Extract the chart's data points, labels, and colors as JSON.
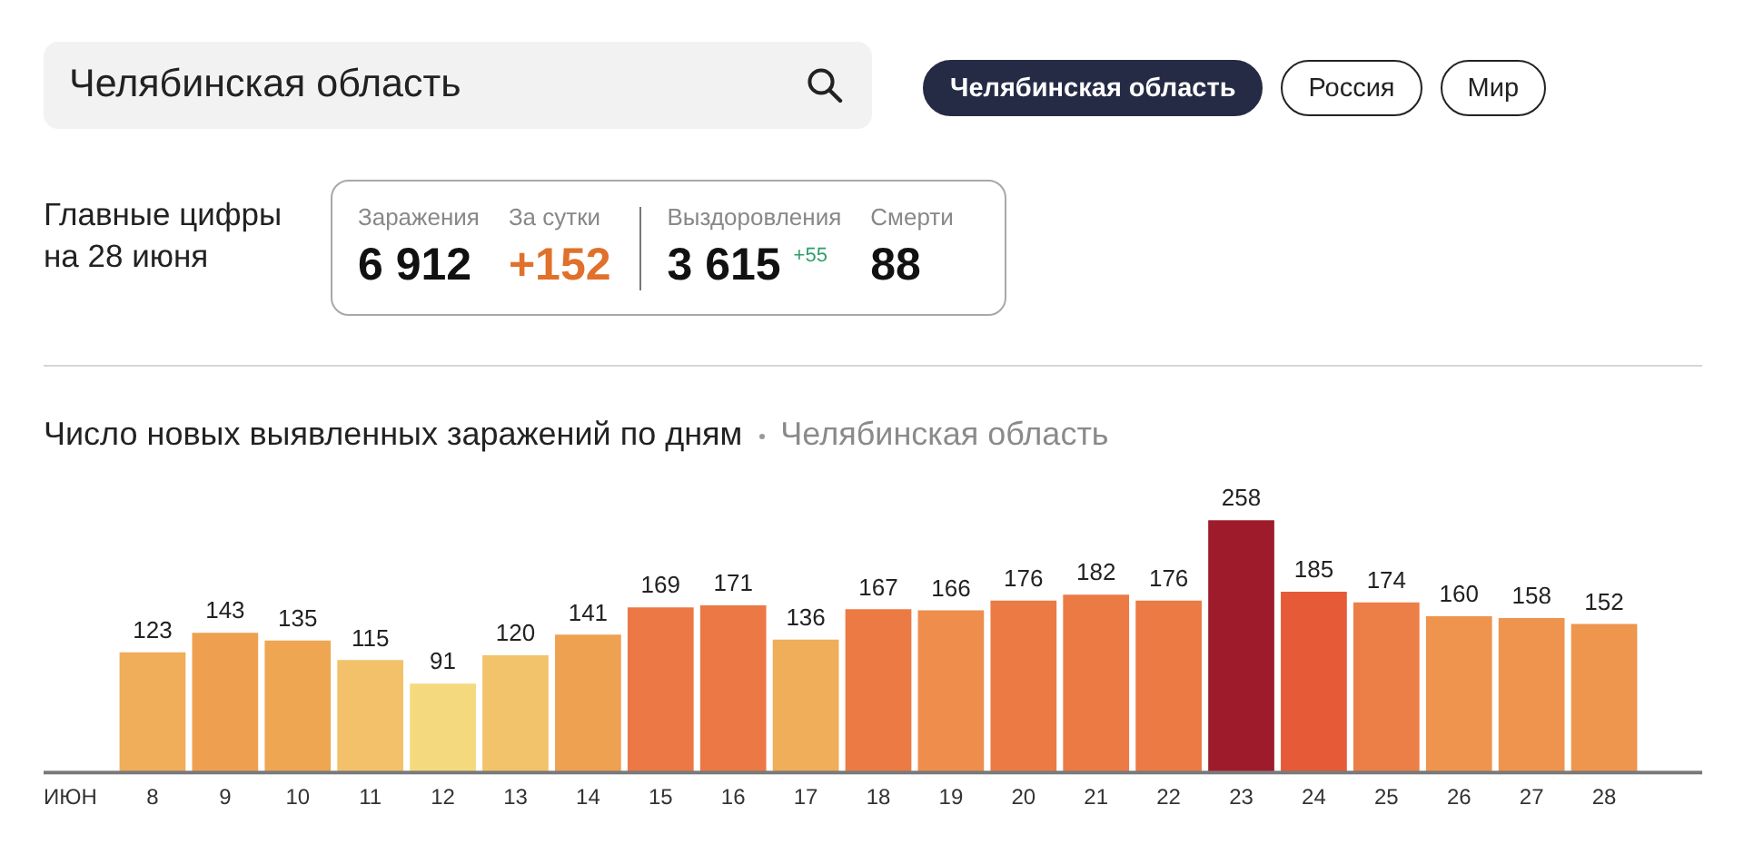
{
  "chart_data": [
    {
      "type": "other",
      "annotations": [
        "Челябинская область",
        "Челябинская область",
        "Россия",
        "Мир"
      ]
    },
    {
      "type": "other",
      "title": "Главные цифры на 28 июня",
      "annotations": [
        "Заражения",
        "6 912",
        "За сутки",
        "+152",
        "Выздоровления",
        "3 615 $^{+55}$",
        "Смерти",
        "88"
      ]
    },
    {
      "type": "bar",
      "title": "Число новых выявленных заражений по дням",
      "subtitle": "Челябинская область",
      "xlabel": "ИЮН",
      "categories": [
        "8",
        "9",
        "10",
        "11",
        "12",
        "13",
        "14",
        "15",
        "16",
        "17",
        "18",
        "19",
        "20",
        "21",
        "22",
        "23",
        "24",
        "25",
        "26",
        "27",
        "28"
      ],
      "values": [
        123,
        143,
        135,
        115,
        91,
        120,
        141,
        169,
        171,
        136,
        167,
        166,
        176,
        182,
        176,
        258,
        185,
        174,
        160,
        158,
        152
      ],
      "colors": [
        "#f0ad5a",
        "#eea050",
        "#efa653",
        "#f2c16a",
        "#f5d97e",
        "#f3c36b",
        "#eea150",
        "#ec7845",
        "#ec7845",
        "#f0ad5a",
        "#ec7a45",
        "#ee8d4c",
        "#ec7a45",
        "#ec7a45",
        "#ec7a45",
        "#9e1b2c",
        "#e65a38",
        "#ec7f47",
        "#ee944e",
        "#ee944e",
        "#ee954e"
      ],
      "data_labels": true
    }
  ]
}
